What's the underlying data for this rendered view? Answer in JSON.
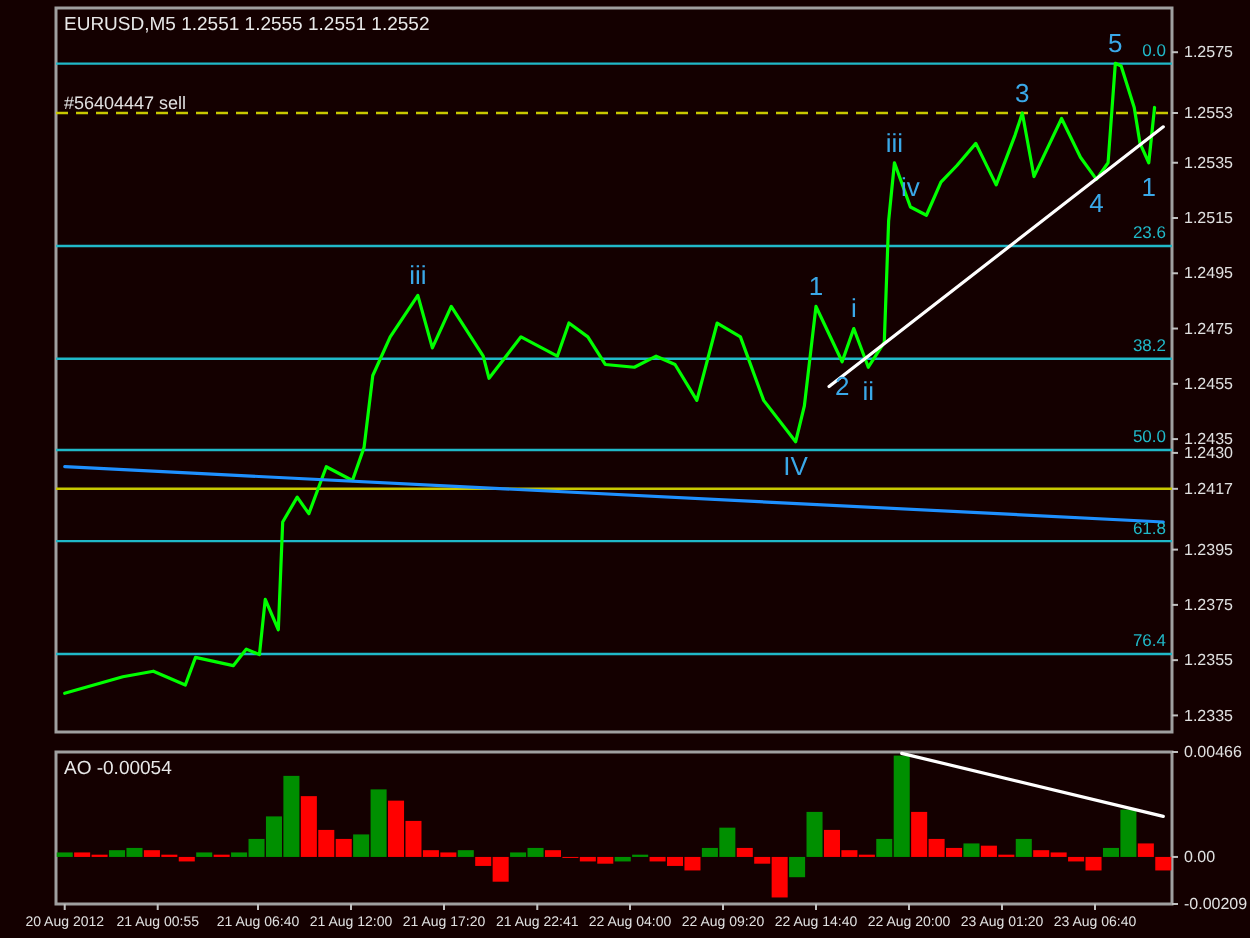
{
  "chart_data": [
    {
      "type": "line",
      "title": "EURUSD,M5  1.2551 1.2555 1.2551 1.2552",
      "xlim": [
        "2012-08-20T19:05",
        "2012-08-23T11:05"
      ],
      "ylim": [
        1.2329,
        1.2591
      ],
      "y2lim": [
        86.5,
        -7.2
      ],
      "yticks": [
        1.2575,
        {
          "value": 1.2553,
          "label": "1.2553"
        },
        1.2535,
        1.2515,
        1.2495,
        1.2475,
        1.2455,
        1.2435,
        {
          "value": 1.243,
          "label": "1.2430"
        },
        1.2417,
        1.2395,
        1.2375,
        1.2355,
        1.2335
      ],
      "y2ticks": [
        {
          "value": 0,
          "label": "0.0"
        },
        23.6,
        38.2,
        {
          "value": 50,
          "label": "50.0"
        },
        61.8,
        76.4
      ],
      "tick_labels": "y",
      "series": [
        {
          "color": "#00ff00",
          "x": [
            "2012-08-20T19:35",
            "2012-08-20T22:55",
            "2012-08-21T00:40",
            "2012-08-21T02:30",
            "2012-08-21T03:05",
            "2012-08-21T05:15",
            "2012-08-21T06:00",
            "2012-08-21T06:45",
            "2012-08-21T07:05",
            "2012-08-21T07:50",
            "2012-08-21T08:05",
            "2012-08-21T08:55",
            "2012-08-21T09:35",
            "2012-08-21T10:35",
            "2012-08-21T12:05",
            "2012-08-21T12:45",
            "2012-08-21T13:15",
            "2012-08-21T14:15",
            "2012-08-21T15:50",
            "2012-08-21T16:40",
            "2012-08-21T17:45",
            "2012-08-21T19:35",
            "2012-08-21T19:55",
            "2012-08-21T21:45",
            "2012-08-21T23:50",
            "2012-08-22T00:30",
            "2012-08-22T01:35",
            "2012-08-22T02:35",
            "2012-08-22T04:15",
            "2012-08-22T05:30",
            "2012-08-22T06:35",
            "2012-08-22T07:50",
            "2012-08-22T09:00",
            "2012-08-22T10:20",
            "2012-08-22T11:40",
            "2012-08-22T13:30",
            "2012-08-22T14:00",
            "2012-08-22T14:40",
            "2012-08-22T16:10",
            "2012-08-22T16:50",
            "2012-08-22T17:40",
            "2012-08-22T18:35",
            "2012-08-22T18:50",
            "2012-08-22T19:10",
            "2012-08-22T20:05",
            "2012-08-22T21:00",
            "2012-08-22T21:50",
            "2012-08-22T22:45",
            "2012-08-22T23:50",
            "2012-08-23T01:00",
            "2012-08-23T02:05",
            "2012-08-23T02:30",
            "2012-08-23T03:10",
            "2012-08-23T04:45",
            "2012-08-23T05:50",
            "2012-08-23T06:45",
            "2012-08-23T07:25",
            "2012-08-23T07:50",
            "2012-08-23T08:10",
            "2012-08-23T08:55",
            "2012-08-23T09:15",
            "2012-08-23T09:45",
            "2012-08-23T10:05"
          ],
          "values": [
            1.2343,
            1.2349,
            1.2351,
            1.2346,
            1.2356,
            1.2353,
            1.2359,
            1.2357,
            1.2377,
            1.2366,
            1.2405,
            1.2414,
            1.2408,
            1.2425,
            1.242,
            1.2432,
            1.2458,
            1.2472,
            1.2487,
            1.2468,
            1.2483,
            1.2465,
            1.2457,
            1.2472,
            1.2465,
            1.2477,
            1.2472,
            1.2462,
            1.2461,
            1.2465,
            1.2462,
            1.2449,
            1.2477,
            1.2472,
            1.2449,
            1.2434,
            1.2447,
            1.2483,
            1.2463,
            1.2475,
            1.2461,
            1.247,
            1.2514,
            1.2535,
            1.2519,
            1.2516,
            1.2528,
            1.2534,
            1.2542,
            1.2527,
            1.2545,
            1.2553,
            1.253,
            1.2551,
            1.2537,
            1.2529,
            1.2535,
            1.2571,
            1.257,
            1.2555,
            1.2542,
            1.2535,
            1.2555
          ]
        },
        {
          "color": "#1e90ff",
          "x": [
            "2012-08-20T19:35",
            "2012-08-23T10:35"
          ],
          "values": [
            1.2425,
            1.2405
          ]
        },
        {
          "color": "#ffffff",
          "x": [
            "2012-08-22T15:25",
            "2012-08-23T10:35"
          ],
          "values": [
            1.2454,
            1.2548
          ]
        }
      ],
      "ref_lines": [
        {
          "axis": "y2",
          "value": 0,
          "color": "#20b8c8"
        },
        {
          "axis": "y2",
          "value": 23.6,
          "color": "#20b8c8"
        },
        {
          "axis": "y2",
          "value": 38.2,
          "color": "#20b8c8"
        },
        {
          "axis": "y2",
          "value": 50,
          "color": "#20b8c8"
        },
        {
          "axis": "y2",
          "value": 61.8,
          "color": "#20b8c8"
        },
        {
          "axis": "y2",
          "value": 76.4,
          "color": "#20b8c8"
        },
        {
          "axis": "y",
          "value": 1.2553,
          "label": "#56404447 sell",
          "color": "#c8c800",
          "line_style": "dashed"
        },
        {
          "axis": "y",
          "value": 1.2417,
          "color": "#c8c800"
        }
      ],
      "annotations": [
        {
          "text": "iii",
          "x": "2012-08-21T15:50",
          "y": 1.2487
        },
        {
          "text": "IV",
          "x": "2012-08-22T13:30",
          "y": 1.2434
        },
        {
          "text": "1",
          "x": "2012-08-22T14:40",
          "y": 1.2483
        },
        {
          "text": "2",
          "x": "2012-08-22T16:10",
          "y": 1.2463
        },
        {
          "text": "i",
          "x": "2012-08-22T16:50",
          "y": 1.2475
        },
        {
          "text": "ii",
          "x": "2012-08-22T17:40",
          "y": 1.2461
        },
        {
          "text": "iii",
          "x": "2012-08-22T19:10",
          "y": 1.2535
        },
        {
          "text": "iv",
          "x": "2012-08-22T20:05",
          "y": 1.2519
        },
        {
          "text": "3",
          "x": "2012-08-23T02:30",
          "y": 1.2553
        },
        {
          "text": "4",
          "x": "2012-08-23T06:45",
          "y": 1.2529
        },
        {
          "text": "5",
          "x": "2012-08-23T07:50",
          "y": 1.2571
        },
        {
          "text": "1",
          "x": "2012-08-23T09:45",
          "y": 1.2535
        }
      ]
    },
    {
      "type": "bar",
      "title": "AO -0.00054",
      "xlim": [
        "2012-08-20T19:05",
        "2012-08-23T11:05"
      ],
      "ylim": [
        -0.00209,
        0.00466
      ],
      "xticks": [
        {
          "value": "2012-08-20T19:35",
          "label": "20 Aug 2012"
        },
        {
          "value": "2012-08-21T00:55",
          "label": "21 Aug 00:55"
        },
        {
          "value": "2012-08-21T06:40",
          "label": "21 Aug 06:40"
        },
        {
          "value": "2012-08-21T12:00",
          "label": "21 Aug 12:00"
        },
        {
          "value": "2012-08-21T17:20",
          "label": "21 Aug 17:20"
        },
        {
          "value": "2012-08-21T22:41",
          "label": "21 Aug 22:41"
        },
        {
          "value": "2012-08-22T04:00",
          "label": "22 Aug 04:00"
        },
        {
          "value": "2012-08-22T09:20",
          "label": "22 Aug 09:20"
        },
        {
          "value": "2012-08-22T14:40",
          "label": "22 Aug 14:40"
        },
        {
          "value": "2012-08-22T20:00",
          "label": "22 Aug 20:00"
        },
        {
          "value": "2012-08-23T01:20",
          "label": "23 Aug 01:20"
        },
        {
          "value": "2012-08-23T06:40",
          "label": "23 Aug 06:40"
        }
      ],
      "yticks": [
        0.00466,
        {
          "value": 0,
          "label": "0.00"
        },
        -0.00209
      ],
      "series": [
        {
          "x": [
            "2012-08-20T19:35",
            "2012-08-20T20:35",
            "2012-08-20T21:35",
            "2012-08-20T22:35",
            "2012-08-20T23:35",
            "2012-08-21T00:35",
            "2012-08-21T01:35",
            "2012-08-21T02:35",
            "2012-08-21T03:35",
            "2012-08-21T04:35",
            "2012-08-21T05:35",
            "2012-08-21T06:35",
            "2012-08-21T07:35",
            "2012-08-21T08:35",
            "2012-08-21T09:35",
            "2012-08-21T10:35",
            "2012-08-21T11:35",
            "2012-08-21T12:35",
            "2012-08-21T13:35",
            "2012-08-21T14:35",
            "2012-08-21T15:35",
            "2012-08-21T16:35",
            "2012-08-21T17:35",
            "2012-08-21T18:35",
            "2012-08-21T19:35",
            "2012-08-21T20:35",
            "2012-08-21T21:35",
            "2012-08-21T22:35",
            "2012-08-21T23:35",
            "2012-08-22T00:35",
            "2012-08-22T01:35",
            "2012-08-22T02:35",
            "2012-08-22T03:35",
            "2012-08-22T04:35",
            "2012-08-22T05:35",
            "2012-08-22T06:35",
            "2012-08-22T07:35",
            "2012-08-22T08:35",
            "2012-08-22T09:35",
            "2012-08-22T10:35",
            "2012-08-22T11:35",
            "2012-08-22T12:35",
            "2012-08-22T13:35",
            "2012-08-22T14:35",
            "2012-08-22T15:35",
            "2012-08-22T16:35",
            "2012-08-22T17:35",
            "2012-08-22T18:35",
            "2012-08-22T19:35",
            "2012-08-22T20:35",
            "2012-08-22T21:35",
            "2012-08-22T22:35",
            "2012-08-22T23:35",
            "2012-08-23T00:35",
            "2012-08-23T01:35",
            "2012-08-23T02:35",
            "2012-08-23T03:35",
            "2012-08-23T04:35",
            "2012-08-23T05:35",
            "2012-08-23T06:35",
            "2012-08-23T07:35",
            "2012-08-23T08:35",
            "2012-08-23T09:35",
            "2012-08-23T10:35"
          ],
          "values": [
            0.0002,
            0.0002,
            0.0001,
            0.0003,
            0.0004,
            0.0003,
            0.0001,
            -0.0002,
            0.0002,
            0.0001,
            0.0002,
            0.0008,
            0.0018,
            0.0036,
            0.0027,
            0.0012,
            0.0008,
            0.001,
            0.003,
            0.0025,
            0.0016,
            0.0003,
            0.0002,
            0.0003,
            -0.0004,
            -0.0011,
            0.0002,
            0.0004,
            0.0003,
            0.0,
            -0.0002,
            -0.0003,
            -0.0002,
            0.0001,
            -0.0002,
            -0.0004,
            -0.0006,
            0.0004,
            0.0013,
            0.0004,
            -0.0003,
            -0.0018,
            -0.0009,
            0.002,
            0.0012,
            0.0003,
            0.0001,
            0.0008,
            0.0045,
            0.002,
            0.0008,
            0.0004,
            0.0006,
            0.0005,
            0.0001,
            0.0008,
            0.0003,
            0.0002,
            -0.0002,
            -0.0006,
            0.0004,
            0.0021,
            0.0006,
            -0.0006
          ],
          "colors": [
            "#008f00",
            "#ff0000",
            "#ff0000",
            "#008f00",
            "#008f00",
            "#ff0000",
            "#ff0000",
            "#ff0000",
            "#008f00",
            "#ff0000",
            "#008f00",
            "#008f00",
            "#008f00",
            "#008f00",
            "#ff0000",
            "#ff0000",
            "#ff0000",
            "#008f00",
            "#008f00",
            "#ff0000",
            "#ff0000",
            "#ff0000",
            "#ff0000",
            "#008f00",
            "#ff0000",
            "#ff0000",
            "#008f00",
            "#008f00",
            "#ff0000",
            "#ff0000",
            "#ff0000",
            "#ff0000",
            "#008f00",
            "#008f00",
            "#ff0000",
            "#ff0000",
            "#ff0000",
            "#008f00",
            "#008f00",
            "#ff0000",
            "#ff0000",
            "#ff0000",
            "#008f00",
            "#008f00",
            "#ff0000",
            "#ff0000",
            "#ff0000",
            "#008f00",
            "#008f00",
            "#ff0000",
            "#ff0000",
            "#ff0000",
            "#008f00",
            "#ff0000",
            "#ff0000",
            "#008f00",
            "#ff0000",
            "#ff0000",
            "#ff0000",
            "#ff0000",
            "#008f00",
            "#008f00",
            "#ff0000",
            "#ff0000"
          ]
        },
        {
          "type": "line",
          "color": "#ffffff",
          "x": [
            "2012-08-22T19:35",
            "2012-08-23T10:35"
          ],
          "values": [
            0.0046,
            0.0018
          ]
        }
      ]
    }
  ]
}
